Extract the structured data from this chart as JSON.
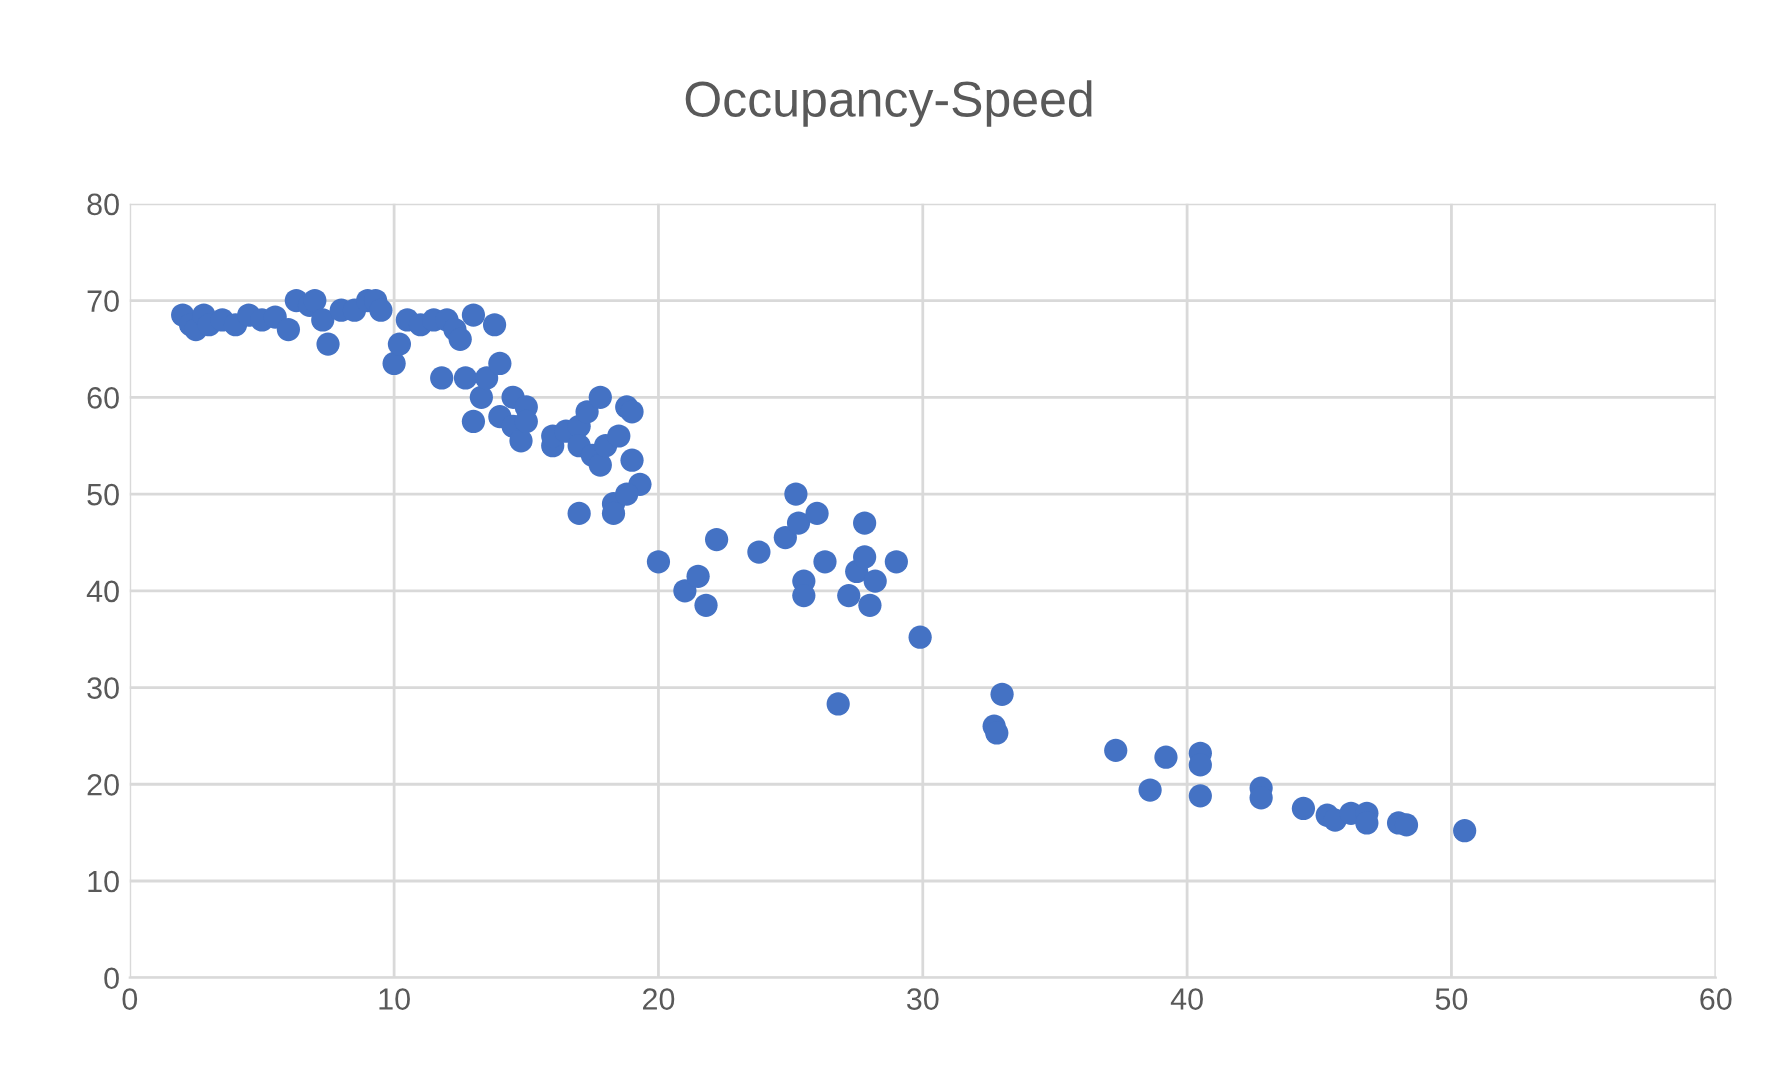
{
  "chart_data": {
    "type": "scatter",
    "title": "Occupancy-Speed",
    "x": [
      2,
      2.3,
      2.5,
      2.8,
      3,
      3.5,
      4,
      4.5,
      5,
      5.5,
      6,
      6.3,
      6.8,
      7,
      7.3,
      7.5,
      8,
      8.5,
      9,
      9.3,
      9.5,
      10,
      10.2,
      10.5,
      11,
      11.5,
      12,
      12.3,
      12.5,
      11.8,
      12.7,
      13,
      13,
      13.3,
      13.5,
      13.8,
      14,
      14,
      14.5,
      14.5,
      14.8,
      15,
      15,
      16,
      16,
      16.5,
      17,
      17,
      17,
      17.3,
      17.5,
      17.8,
      17.8,
      18,
      18.3,
      18.3,
      18.5,
      18.8,
      19,
      19,
      19.3,
      18.8,
      20,
      21,
      21.5,
      21.8,
      22.2,
      23.8,
      24.8,
      25.2,
      25.3,
      25.5,
      25.5,
      26,
      26.3,
      26.8,
      27.2,
      27.5,
      27.8,
      27.8,
      28,
      28.2,
      29,
      29.9,
      32.7,
      32.8,
      33,
      37.3,
      38.6,
      39.2,
      40.5,
      40.5,
      40.5,
      42.8,
      42.8,
      44.4,
      45.3,
      45.6,
      46.2,
      46.8,
      46.8,
      48,
      48.3,
      50.5
    ],
    "values": [
      68.5,
      67.5,
      67,
      68.5,
      67.5,
      68,
      67.5,
      68.5,
      68,
      68.3,
      67,
      70,
      69.5,
      70,
      68,
      65.5,
      69,
      69,
      70,
      70,
      69,
      63.5,
      65.5,
      68,
      67.5,
      68,
      68,
      67,
      66,
      62,
      62,
      68.5,
      57.5,
      60,
      62,
      67.5,
      63.5,
      58,
      60,
      57,
      55.5,
      59,
      57.5,
      55,
      56,
      56.5,
      57,
      55,
      48,
      58.5,
      54,
      53,
      60,
      55,
      49,
      48,
      56,
      59,
      53.5,
      58.5,
      51,
      50,
      43,
      40,
      41.5,
      38.5,
      45.3,
      44,
      45.5,
      50,
      47,
      41,
      39.5,
      48,
      43,
      28.3,
      39.5,
      42,
      43.5,
      47,
      38.5,
      41,
      43,
      35.2,
      26,
      25.3,
      29.3,
      23.5,
      19.4,
      22.8,
      23.2,
      22,
      18.8,
      19.6,
      18.6,
      17.5,
      16.8,
      16.3,
      17,
      17,
      16,
      16,
      15.8,
      15.2
    ],
    "color": "#4472c4",
    "marker": "circle",
    "xlim": [
      0,
      60
    ],
    "xticks": [
      0,
      10,
      20,
      30,
      40,
      50,
      60
    ],
    "ylim": [
      0,
      80
    ],
    "yticks": [
      0,
      10,
      20,
      30,
      40,
      50,
      60,
      70,
      80
    ],
    "grid": true
  }
}
